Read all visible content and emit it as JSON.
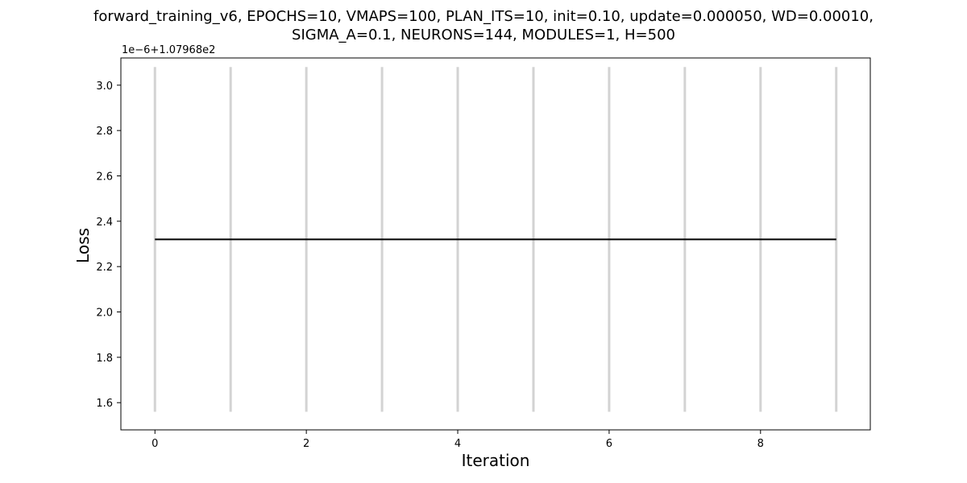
{
  "chart_data": {
    "type": "line",
    "title_lines": [
      "forward_training_v6, EPOCHS=10, VMAPS=100, PLAN_ITS=10, init=0.10, update=0.000050, WD=0.00010,",
      "SIGMA_A=0.1, NEURONS=144, MODULES=1, H=500"
    ],
    "xlabel": "Iteration",
    "ylabel": "Loss",
    "y_offset_label": "1e−6+1.07968e2",
    "xlim": [
      -0.45,
      9.45
    ],
    "ylim": [
      1.48,
      3.12
    ],
    "x_ticks": [
      0,
      2,
      4,
      6,
      8
    ],
    "x_tick_labels": [
      "0",
      "2",
      "4",
      "6",
      "8"
    ],
    "y_ticks": [
      1.6,
      1.8,
      2.0,
      2.2,
      2.4,
      2.6,
      2.8,
      3.0
    ],
    "y_tick_labels": [
      "1.6",
      "1.8",
      "2.0",
      "2.2",
      "2.4",
      "2.6",
      "2.8",
      "3.0"
    ],
    "series": [
      {
        "color": "#000000",
        "x": [
          0,
          1,
          2,
          3,
          4,
          5,
          6,
          7,
          8,
          9
        ],
        "y": [
          2.32,
          2.32,
          2.32,
          2.32,
          2.32,
          2.32,
          2.32,
          2.32,
          2.32,
          2.32
        ]
      }
    ],
    "vlines": {
      "color": "#d3d3d3",
      "x": [
        0,
        1,
        2,
        3,
        4,
        5,
        6,
        7,
        8,
        9
      ],
      "ymin": 1.56,
      "ymax": 3.08
    },
    "grid": false,
    "legend": "none"
  }
}
